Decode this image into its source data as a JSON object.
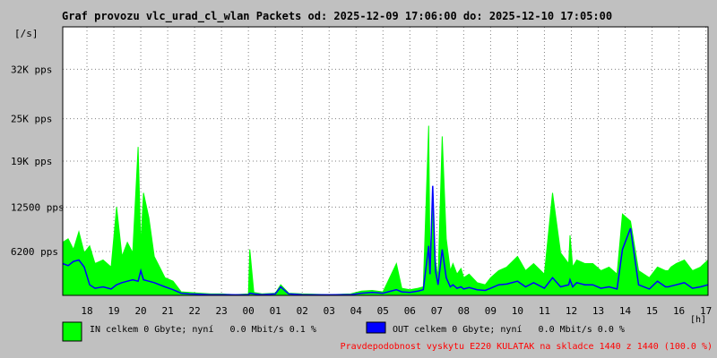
{
  "title": "Graf provozu vlc_urad_cl_wlan Packets od: 2025-12-09 17:06:00 do: 2025-12-10 17:05:00",
  "colors": {
    "background": "#c0c0c0",
    "plot_bg": "#ffffff",
    "grid": "#808080",
    "in": "#00ff00",
    "out": "#0000ff",
    "text": "#000000",
    "footer": "#ff0000"
  },
  "legend": {
    "in_text": "IN celkem 0 Gbyte; nyní   0.0 Mbit/s 0.1 %",
    "out_text": "OUT celkem 0 Gbyte; nyní   0.0 Mbit/s 0.0 %"
  },
  "footer_text": "Pravdepodobnost vyskytu E220 KULATAK na skladce 1440 z 1440 (100.0 %)",
  "chart_data": {
    "type": "area",
    "title": "Graf provozu vlc_urad_cl_wlan Packets od: 2025-12-09 17:06:00 do: 2025-12-10 17:05:00",
    "y_unit_label": "[/s]",
    "x_unit_label": "[h]",
    "y_ticks": [
      {
        "value": 6200,
        "label": "6200 pps"
      },
      {
        "value": 12500,
        "label": "12500 pps"
      },
      {
        "value": 19000,
        "label": "19K pps"
      },
      {
        "value": 25000,
        "label": "25K pps"
      },
      {
        "value": 32000,
        "label": "32K pps"
      }
    ],
    "ylim": [
      0,
      38000
    ],
    "x_ticks": [
      "18",
      "19",
      "20",
      "21",
      "22",
      "23",
      "00",
      "01",
      "02",
      "03",
      "04",
      "05",
      "06",
      "07",
      "08",
      "09",
      "10",
      "11",
      "12",
      "13",
      "14",
      "15",
      "16",
      "17"
    ],
    "xlim_hours": [
      17.1,
      41.08
    ],
    "grid": true,
    "series": [
      {
        "name": "IN",
        "color": "#00ff00",
        "x": [
          17.1,
          17.3,
          17.5,
          17.7,
          17.9,
          18.1,
          18.3,
          18.6,
          18.9,
          19.1,
          19.3,
          19.5,
          19.7,
          19.9,
          20.0,
          20.1,
          20.3,
          20.5,
          20.7,
          20.9,
          21.2,
          21.5,
          21.8,
          22.2,
          22.6,
          23.0,
          23.5,
          24.0,
          24.05,
          24.2,
          24.5,
          25.0,
          25.2,
          25.5,
          26.0,
          27.0,
          27.8,
          28.2,
          28.6,
          29.0,
          29.5,
          29.7,
          30.0,
          30.3,
          30.5,
          30.7,
          30.75,
          30.85,
          30.95,
          31.05,
          31.2,
          31.35,
          31.5,
          31.6,
          31.75,
          31.9,
          32.0,
          32.2,
          32.5,
          32.8,
          33.0,
          33.3,
          33.6,
          34.0,
          34.3,
          34.6,
          35.0,
          35.3,
          35.6,
          35.9,
          35.95,
          36.05,
          36.2,
          36.5,
          36.8,
          37.1,
          37.4,
          37.7,
          37.9,
          38.2,
          38.5,
          38.9,
          39.2,
          39.5,
          39.6,
          39.7,
          39.9,
          40.2,
          40.5,
          40.8,
          41.08
        ],
        "y": [
          7500,
          8000,
          6500,
          9000,
          6000,
          7000,
          4500,
          5000,
          4000,
          12500,
          5500,
          7500,
          6000,
          21000,
          7000,
          14500,
          11000,
          5500,
          4000,
          2500,
          2000,
          500,
          400,
          300,
          200,
          200,
          100,
          200,
          6500,
          400,
          200,
          300,
          1500,
          300,
          200,
          100,
          200,
          600,
          700,
          500,
          4500,
          1000,
          800,
          1000,
          1200,
          24000,
          4500,
          13500,
          5000,
          2500,
          22500,
          8000,
          3500,
          4500,
          3000,
          3800,
          2500,
          3000,
          1800,
          1500,
          2500,
          3500,
          4000,
          5500,
          3500,
          4500,
          3000,
          14500,
          6000,
          4500,
          8500,
          4000,
          5000,
          4500,
          4500,
          3500,
          4000,
          3000,
          11500,
          10500,
          3500,
          2500,
          4000,
          3500,
          3500,
          4000,
          4500,
          5000,
          3500,
          4000,
          5000
        ]
      },
      {
        "name": "OUT",
        "color": "#0000ff",
        "x": [
          17.1,
          17.3,
          17.5,
          17.7,
          17.9,
          18.1,
          18.3,
          18.6,
          18.9,
          19.1,
          19.3,
          19.5,
          19.7,
          19.9,
          20.0,
          20.1,
          20.3,
          20.5,
          20.7,
          20.9,
          21.2,
          21.5,
          21.8,
          22.2,
          22.6,
          23.0,
          23.5,
          24.0,
          24.05,
          24.2,
          24.5,
          25.0,
          25.2,
          25.5,
          26.0,
          27.0,
          27.8,
          28.2,
          28.6,
          29.0,
          29.5,
          29.7,
          30.0,
          30.3,
          30.5,
          30.7,
          30.75,
          30.85,
          30.95,
          31.05,
          31.2,
          31.35,
          31.5,
          31.6,
          31.75,
          31.9,
          32.0,
          32.2,
          32.5,
          32.8,
          33.0,
          33.3,
          33.6,
          34.0,
          34.3,
          34.6,
          35.0,
          35.3,
          35.6,
          35.9,
          35.95,
          36.05,
          36.2,
          36.5,
          36.8,
          37.1,
          37.4,
          37.7,
          37.9,
          38.2,
          38.5,
          38.9,
          39.2,
          39.5,
          39.6,
          39.7,
          39.9,
          40.2,
          40.5,
          40.8,
          41.08
        ],
        "y": [
          4500,
          4200,
          4800,
          5000,
          4000,
          1500,
          1000,
          1200,
          900,
          1500,
          1800,
          2000,
          2200,
          2000,
          3500,
          2200,
          2000,
          1800,
          1500,
          1200,
          800,
          300,
          200,
          150,
          100,
          100,
          80,
          100,
          300,
          200,
          100,
          200,
          1200,
          200,
          100,
          80,
          100,
          300,
          400,
          300,
          800,
          500,
          400,
          600,
          800,
          7000,
          3000,
          15500,
          3500,
          1500,
          6500,
          2500,
          1200,
          1500,
          1000,
          1200,
          900,
          1100,
          800,
          700,
          1000,
          1500,
          1600,
          2000,
          1200,
          1800,
          1000,
          2500,
          1200,
          1500,
          2200,
          1200,
          1800,
          1500,
          1500,
          1000,
          1200,
          900,
          6500,
          9500,
          1500,
          900,
          2000,
          1200,
          1200,
          1300,
          1500,
          1800,
          1000,
          1200,
          1500
        ]
      }
    ]
  }
}
